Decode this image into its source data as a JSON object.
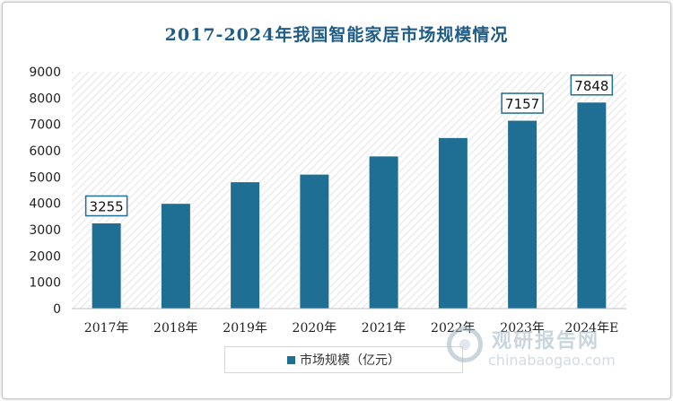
{
  "chart_data": {
    "type": "bar",
    "title": "2017-2024年我国智能家居市场规模情况",
    "categories": [
      "2017年",
      "2018年",
      "2019年",
      "2020年",
      "2021年",
      "2022年",
      "2023年",
      "2024年E"
    ],
    "series": [
      {
        "name": "市场规模（亿元）",
        "values": [
          3255,
          4000,
          4820,
          5110,
          5800,
          6500,
          7157,
          7848
        ]
      }
    ],
    "data_labels": [
      {
        "category": "2017年",
        "value": "3255"
      },
      {
        "category": "2023年",
        "value": "7157"
      },
      {
        "category": "2024年E",
        "value": "7848"
      }
    ],
    "ylim": [
      0,
      9000
    ],
    "yticks": [
      "0",
      "1000",
      "2000",
      "3000",
      "4000",
      "5000",
      "6000",
      "7000",
      "8000",
      "9000"
    ],
    "xlabel": "",
    "ylabel": "",
    "legend_position": "bottom",
    "grid": false,
    "plot_background": "diagonal-hatch",
    "colors": {
      "bar": "#1f6e93",
      "title": "#1f5d86",
      "hatch": "#d9d9d9"
    }
  },
  "watermark": {
    "name_cn": "观研报告网",
    "name_en": "chinabaogao.com"
  }
}
